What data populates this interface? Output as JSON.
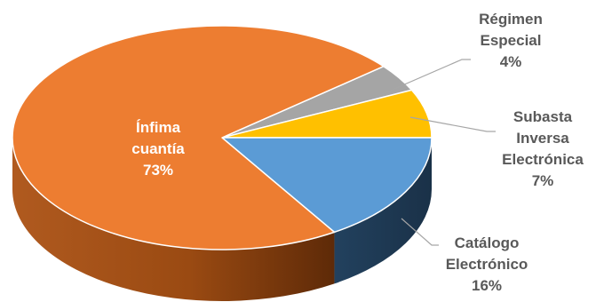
{
  "chart_data": {
    "type": "pie",
    "title": "",
    "slices": [
      {
        "label_lines": [
          "Régimen",
          "Especial"
        ],
        "percent_label": "4%",
        "value": 4,
        "color": "#a5a5a5",
        "side_color": "#6e6e6e"
      },
      {
        "label_lines": [
          "Subasta",
          "Inversa",
          "Electrónica"
        ],
        "percent_label": "7%",
        "value": 7,
        "color": "#ffc000",
        "side_color": "#b38600"
      },
      {
        "label_lines": [
          "Catálogo",
          "Electrónico"
        ],
        "percent_label": "16%",
        "value": 16,
        "color": "#5b9bd5",
        "side_color": "#1f3a56"
      },
      {
        "label_lines": [
          "Ínfima",
          "cuantía"
        ],
        "percent_label": "73%",
        "value": 73,
        "color": "#ed7d31",
        "side_color": "#9a4a12"
      }
    ],
    "legend": "none"
  }
}
